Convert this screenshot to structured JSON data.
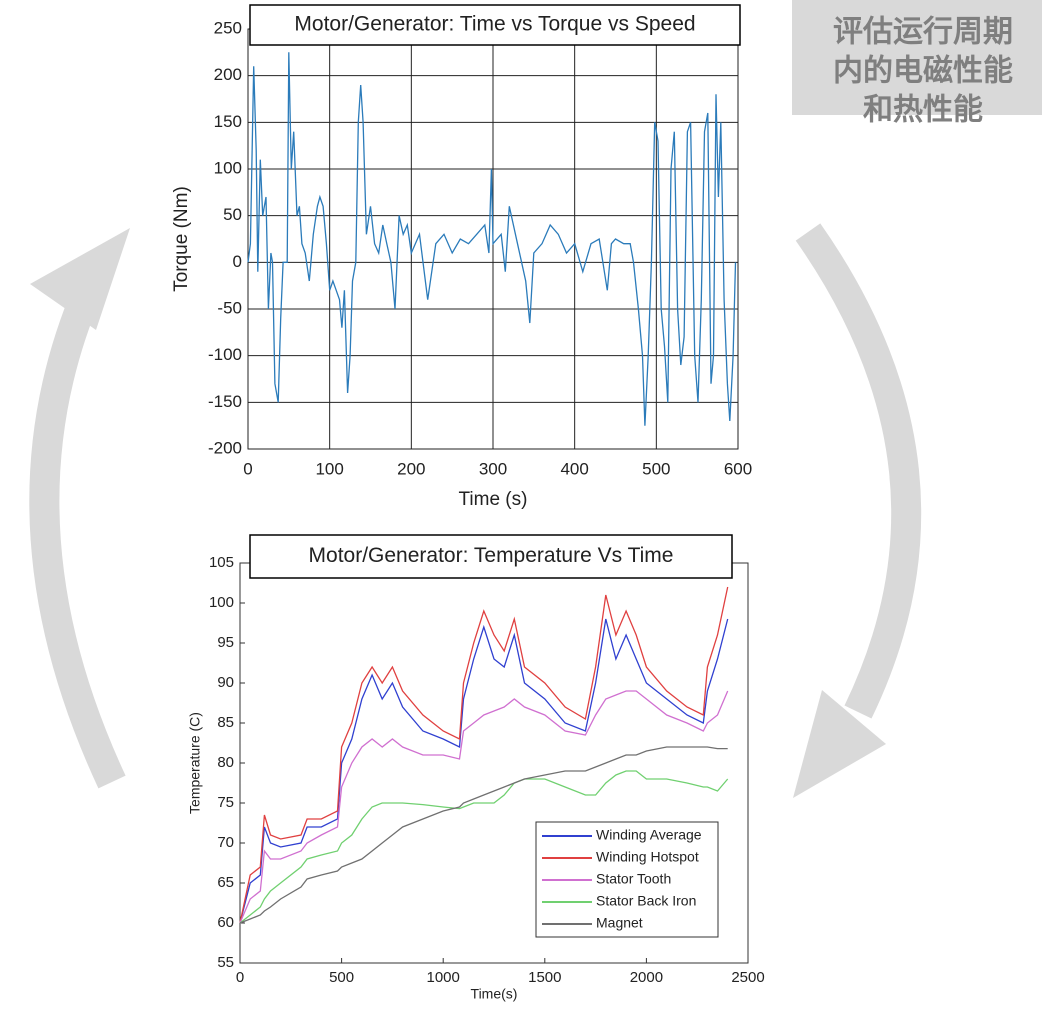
{
  "callout": [
    "评估运行周期",
    "内的电磁性能",
    "和热性能"
  ],
  "chart_data": [
    {
      "type": "line",
      "title": "Motor/Generator: Time vs Torque vs Speed",
      "xlabel": "Time (s)",
      "ylabel": "Torque (Nm)",
      "x": [
        0,
        3,
        7,
        10,
        12,
        15,
        18,
        22,
        25,
        28,
        30,
        33,
        37,
        40,
        43,
        48,
        50,
        53,
        56,
        60,
        63,
        66,
        70,
        75,
        80,
        85,
        88,
        92,
        96,
        100,
        104,
        108,
        112,
        115,
        118,
        122,
        125,
        128,
        132,
        135,
        138,
        141,
        145,
        150,
        155,
        160,
        165,
        170,
        175,
        180,
        185,
        190,
        195,
        200,
        210,
        220,
        230,
        240,
        250,
        260,
        270,
        280,
        290,
        295,
        298,
        300,
        310,
        315,
        320,
        325,
        330,
        335,
        340,
        345,
        350,
        360,
        370,
        380,
        390,
        400,
        410,
        420,
        430,
        440,
        445,
        450,
        460,
        468,
        472,
        478,
        483,
        486,
        490,
        494,
        498,
        502,
        506,
        510,
        514,
        518,
        522,
        526,
        530,
        534,
        538,
        542,
        547,
        551,
        555,
        559,
        563,
        567,
        570,
        573,
        576,
        579,
        583,
        587,
        590,
        594,
        597
      ],
      "values": [
        0,
        20,
        210,
        120,
        -10,
        110,
        50,
        70,
        -50,
        10,
        0,
        -130,
        -150,
        -60,
        0,
        0,
        225,
        100,
        140,
        50,
        60,
        20,
        10,
        -20,
        30,
        60,
        70,
        60,
        20,
        -30,
        -20,
        -30,
        -40,
        -70,
        -30,
        -140,
        -100,
        -20,
        0,
        150,
        190,
        150,
        30,
        60,
        20,
        10,
        40,
        20,
        0,
        -50,
        50,
        30,
        40,
        10,
        30,
        -40,
        20,
        30,
        10,
        25,
        20,
        30,
        40,
        10,
        100,
        20,
        30,
        -10,
        60,
        40,
        20,
        0,
        -20,
        -65,
        10,
        20,
        40,
        30,
        10,
        20,
        -10,
        20,
        25,
        -30,
        20,
        25,
        20,
        20,
        0,
        -50,
        -100,
        -175,
        -100,
        0,
        150,
        130,
        -50,
        -90,
        -150,
        100,
        140,
        -50,
        -110,
        -80,
        140,
        150,
        -100,
        -150,
        -40,
        140,
        160,
        -130,
        -100,
        180,
        70,
        150,
        -40,
        -130,
        -170,
        -100,
        0
      ],
      "color": "#2b7bba",
      "xlim": [
        0,
        600
      ],
      "ylim": [
        -200,
        250
      ],
      "xticks": [
        0,
        100,
        200,
        300,
        400,
        500,
        600
      ],
      "yticks": [
        -200,
        -150,
        -100,
        -50,
        0,
        50,
        100,
        150,
        200,
        250
      ],
      "grid": true
    },
    {
      "type": "line",
      "title": "Motor/Generator: Temperature Vs Time",
      "xlabel": "Time(s)",
      "ylabel": "Temperature (C)",
      "x": [
        0,
        50,
        100,
        120,
        150,
        200,
        300,
        330,
        400,
        480,
        500,
        550,
        600,
        650,
        700,
        750,
        800,
        900,
        1000,
        1080,
        1100,
        1150,
        1200,
        1250,
        1300,
        1350,
        1400,
        1500,
        1600,
        1700,
        1750,
        1800,
        1850,
        1900,
        1950,
        2000,
        2100,
        2200,
        2280,
        2300,
        2350,
        2400
      ],
      "series": [
        {
          "name": "Winding Average",
          "color": "#3040d0",
          "values": [
            60,
            65,
            66,
            72,
            70,
            69.5,
            70,
            72,
            72,
            73,
            80,
            83,
            88,
            91,
            88,
            90,
            87,
            84,
            83,
            82,
            88,
            93,
            97,
            93,
            92,
            96,
            90,
            88,
            85,
            84,
            90,
            98,
            93,
            96,
            93,
            90,
            88,
            86,
            85,
            89,
            93,
            98
          ]
        },
        {
          "name": "Winding Hotspot",
          "color": "#e04040",
          "values": [
            60,
            66,
            67,
            73.5,
            71,
            70.5,
            71,
            73,
            73,
            74,
            82,
            85,
            90,
            92,
            90,
            92,
            89,
            86,
            84,
            83,
            90,
            95,
            99,
            96,
            94,
            98,
            92,
            90,
            87,
            85.5,
            92,
            101,
            96,
            99,
            96,
            92,
            89,
            87,
            86,
            92,
            96,
            102
          ]
        },
        {
          "name": "Stator Tooth",
          "color": "#d070d0",
          "values": [
            60,
            63,
            64,
            69,
            68,
            68,
            69,
            70,
            71,
            72,
            77,
            80,
            82,
            83,
            82,
            83,
            82,
            81,
            81,
            80.5,
            84,
            85,
            86,
            86.5,
            87,
            88,
            87,
            86,
            84,
            83.5,
            86,
            88,
            88.5,
            89,
            89,
            88,
            86,
            85,
            84,
            85,
            86,
            89
          ]
        },
        {
          "name": "Stator Back Iron",
          "color": "#70d070",
          "values": [
            60,
            61,
            62,
            63,
            64,
            65,
            67,
            68,
            68.5,
            69,
            70,
            71,
            73,
            74.5,
            75,
            75,
            75,
            74.8,
            74.5,
            74.3,
            74.5,
            75,
            75,
            75,
            76,
            77.5,
            78,
            78,
            77,
            76,
            76,
            77.5,
            78.5,
            79,
            79,
            78,
            78,
            77.5,
            77,
            77,
            76.5,
            78
          ]
        },
        {
          "name": "Magnet",
          "color": "#707070",
          "values": [
            60,
            60.5,
            61,
            61.5,
            62,
            63,
            64.5,
            65.5,
            66,
            66.5,
            67,
            67.5,
            68,
            69,
            70,
            71,
            72,
            73,
            74,
            74.5,
            75,
            75.5,
            76,
            76.5,
            77,
            77.5,
            78,
            78.5,
            79,
            79,
            79.5,
            80,
            80.5,
            81,
            81,
            81.5,
            82,
            82,
            82,
            82,
            81.8,
            81.8
          ]
        }
      ],
      "xlim": [
        0,
        2500
      ],
      "ylim": [
        55,
        105
      ],
      "xticks": [
        0,
        500,
        1000,
        1500,
        2000,
        2500
      ],
      "yticks": [
        55,
        60,
        65,
        70,
        75,
        80,
        85,
        90,
        95,
        100,
        105
      ],
      "grid": false,
      "legend": "lower right"
    }
  ]
}
